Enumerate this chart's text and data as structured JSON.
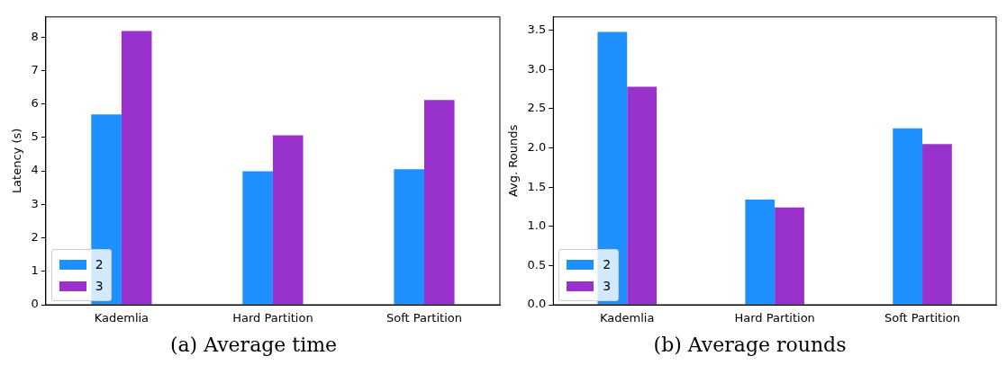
{
  "chart_data": [
    {
      "type": "bar",
      "title": "(a) Average time",
      "ylabel": "Latency (s)",
      "categories": [
        "Kademlia",
        "Hard Partition",
        "Soft Partition"
      ],
      "series": [
        {
          "name": "2",
          "color": "#1e90ff",
          "values": [
            5.69,
            3.99,
            4.05
          ]
        },
        {
          "name": "3",
          "color": "#9932cc",
          "values": [
            8.18,
            5.06,
            6.12
          ]
        }
      ],
      "ylim": [
        0,
        8.6
      ],
      "yticks": [
        0,
        1,
        2,
        3,
        4,
        5,
        6,
        7,
        8
      ],
      "grid": false,
      "legend": "bottom left"
    },
    {
      "type": "bar",
      "title": "(b) Average rounds",
      "ylabel": "Avg. Rounds",
      "categories": [
        "Kademlia",
        "Hard Partition",
        "Soft Partition"
      ],
      "series": [
        {
          "name": "2",
          "color": "#1e90ff",
          "values": [
            3.48,
            1.34,
            2.25
          ]
        },
        {
          "name": "3",
          "color": "#9932cc",
          "values": [
            2.78,
            1.24,
            2.05
          ]
        }
      ],
      "ylim": [
        0,
        3.67
      ],
      "yticks": [
        {
          "value": 0,
          "label": "0.0"
        },
        {
          "value": 0.5,
          "label": "0.5"
        },
        {
          "value": 1,
          "label": "1.0"
        },
        {
          "value": 1.5,
          "label": "1.5"
        },
        {
          "value": 2,
          "label": "2.0"
        },
        {
          "value": 2.5,
          "label": "2.5"
        },
        {
          "value": 3,
          "label": "3.0"
        },
        {
          "value": 3.5,
          "label": "3.5"
        }
      ],
      "grid": false,
      "legend": "bottom left"
    }
  ]
}
